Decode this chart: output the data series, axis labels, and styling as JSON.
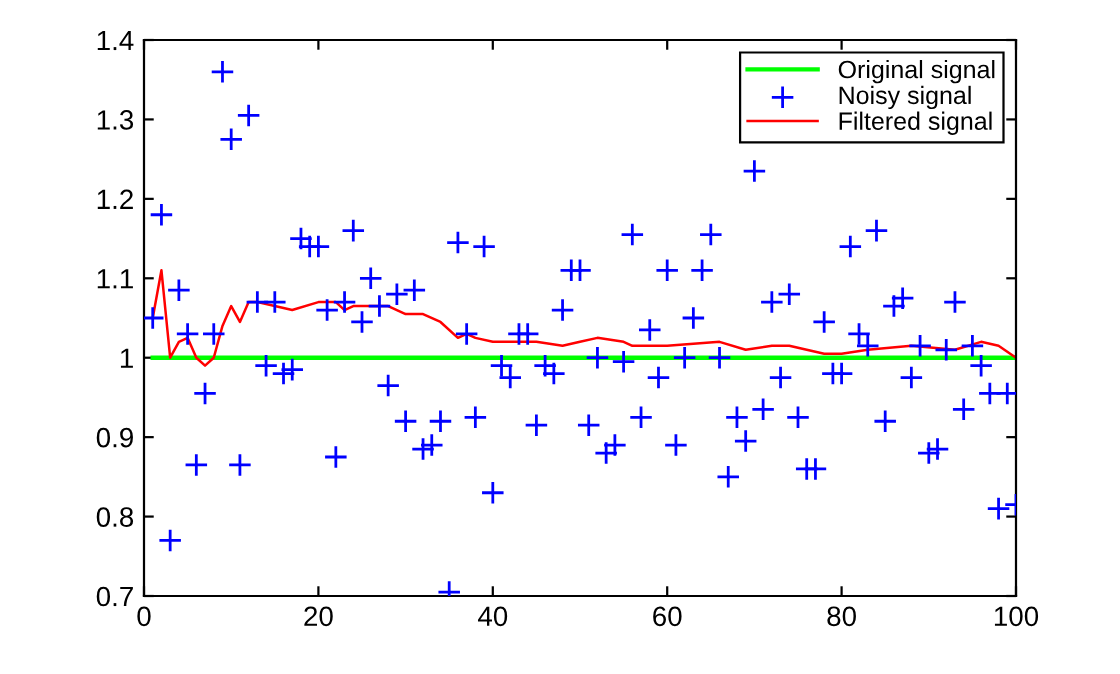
{
  "chart_data": {
    "type": "line",
    "xlim": [
      0,
      100
    ],
    "ylim": [
      0.7,
      1.4
    ],
    "xticks": [
      0,
      20,
      40,
      60,
      80,
      100
    ],
    "yticks": [
      0.7,
      0.8,
      0.9,
      1,
      1.1,
      1.2,
      1.3,
      1.4
    ],
    "grid": false,
    "legend": "top right",
    "series": [
      {
        "name": "Original signal",
        "color": "#00ff00",
        "marker": "none",
        "line_style": "solid",
        "x": [
          1,
          100
        ],
        "values": [
          1,
          1
        ]
      },
      {
        "name": "Noisy signal",
        "type": "scatter",
        "color": "#0000ff",
        "marker": "cross",
        "x": [
          1,
          2,
          3,
          4,
          5,
          6,
          7,
          8,
          9,
          10,
          11,
          12,
          13,
          14,
          15,
          16,
          17,
          18,
          19,
          20,
          21,
          22,
          23,
          24,
          25,
          26,
          27,
          28,
          29,
          30,
          31,
          32,
          33,
          34,
          35,
          36,
          37,
          38,
          39,
          40,
          41,
          42,
          43,
          44,
          45,
          46,
          47,
          48,
          49,
          50,
          51,
          52,
          53,
          54,
          55,
          56,
          57,
          58,
          59,
          60,
          61,
          62,
          63,
          64,
          65,
          66,
          67,
          68,
          69,
          70,
          71,
          72,
          73,
          74,
          75,
          76,
          77,
          78,
          79,
          80,
          81,
          82,
          83,
          84,
          85,
          86,
          87,
          88,
          89,
          90,
          91,
          92,
          93,
          94,
          95,
          96,
          97,
          98,
          99,
          100
        ],
        "values": [
          1.05,
          1.18,
          0.77,
          1.085,
          1.03,
          0.865,
          0.955,
          1.03,
          1.36,
          1.275,
          0.865,
          1.305,
          1.07,
          0.99,
          1.07,
          0.98,
          0.985,
          1.15,
          1.14,
          1.14,
          1.06,
          0.875,
          1.07,
          1.16,
          1.045,
          1.1,
          1.065,
          0.965,
          1.08,
          0.92,
          1.085,
          0.885,
          0.89,
          0.92,
          0.705,
          1.145,
          1.03,
          0.925,
          1.14,
          0.83,
          0.99,
          0.975,
          1.03,
          1.03,
          0.915,
          0.99,
          0.98,
          1.06,
          1.11,
          1.11,
          0.915,
          1.0,
          0.88,
          0.89,
          0.995,
          1.155,
          0.925,
          1.035,
          0.975,
          1.11,
          0.89,
          1.0,
          1.05,
          1.11,
          1.155,
          1.0,
          0.85,
          0.925,
          0.895,
          1.235,
          0.935,
          1.07,
          0.975,
          1.08,
          0.925,
          0.86,
          0.86,
          1.045,
          0.98,
          0.98,
          1.14,
          1.03,
          1.015,
          1.16,
          0.92,
          1.065,
          1.075,
          0.975,
          1.015,
          0.88,
          0.885,
          1.01,
          1.07,
          0.935,
          1.015,
          0.99,
          0.955,
          0.81,
          0.955,
          0.815
        ]
      },
      {
        "name": "Filtered signal",
        "color": "#ff0000",
        "marker": "none",
        "line_style": "solid",
        "x": [
          1,
          2,
          3,
          4,
          5,
          6,
          7,
          8,
          9,
          10,
          11,
          12,
          13,
          15,
          17,
          20,
          22,
          23,
          24,
          28,
          30,
          32,
          34,
          36,
          37,
          38,
          40,
          45,
          48,
          50,
          52,
          55,
          56,
          60,
          66,
          69,
          72,
          74,
          78,
          80,
          83,
          88,
          93,
          96,
          98,
          100
        ],
        "values": [
          1.05,
          1.11,
          1.0,
          1.02,
          1.025,
          1.0,
          0.99,
          1.0,
          1.04,
          1.065,
          1.045,
          1.07,
          1.07,
          1.065,
          1.06,
          1.07,
          1.07,
          1.06,
          1.065,
          1.065,
          1.055,
          1.055,
          1.045,
          1.025,
          1.03,
          1.025,
          1.02,
          1.02,
          1.015,
          1.02,
          1.025,
          1.02,
          1.015,
          1.015,
          1.02,
          1.01,
          1.015,
          1.015,
          1.005,
          1.005,
          1.01,
          1.015,
          1.01,
          1.02,
          1.015,
          1.0
        ]
      }
    ]
  }
}
